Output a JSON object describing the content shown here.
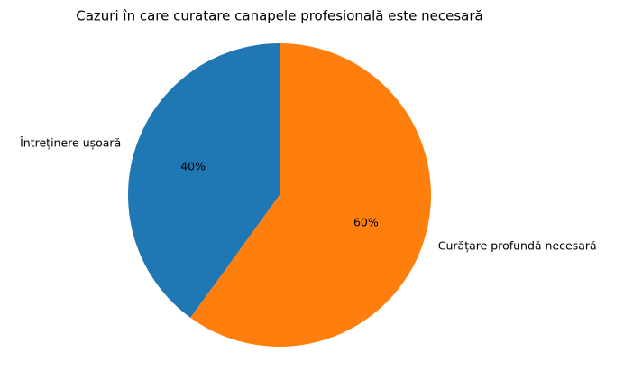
{
  "chart_data": {
    "type": "pie",
    "title": "Cazuri în care curatare canapele profesională este necesară",
    "categories": [
      "Întreținere ușoară",
      "Curățare profundă necesară"
    ],
    "values": [
      40,
      60
    ],
    "value_labels": [
      "40%",
      "60%"
    ],
    "colors": [
      "#1f77b4",
      "#ff7f0e"
    ]
  }
}
